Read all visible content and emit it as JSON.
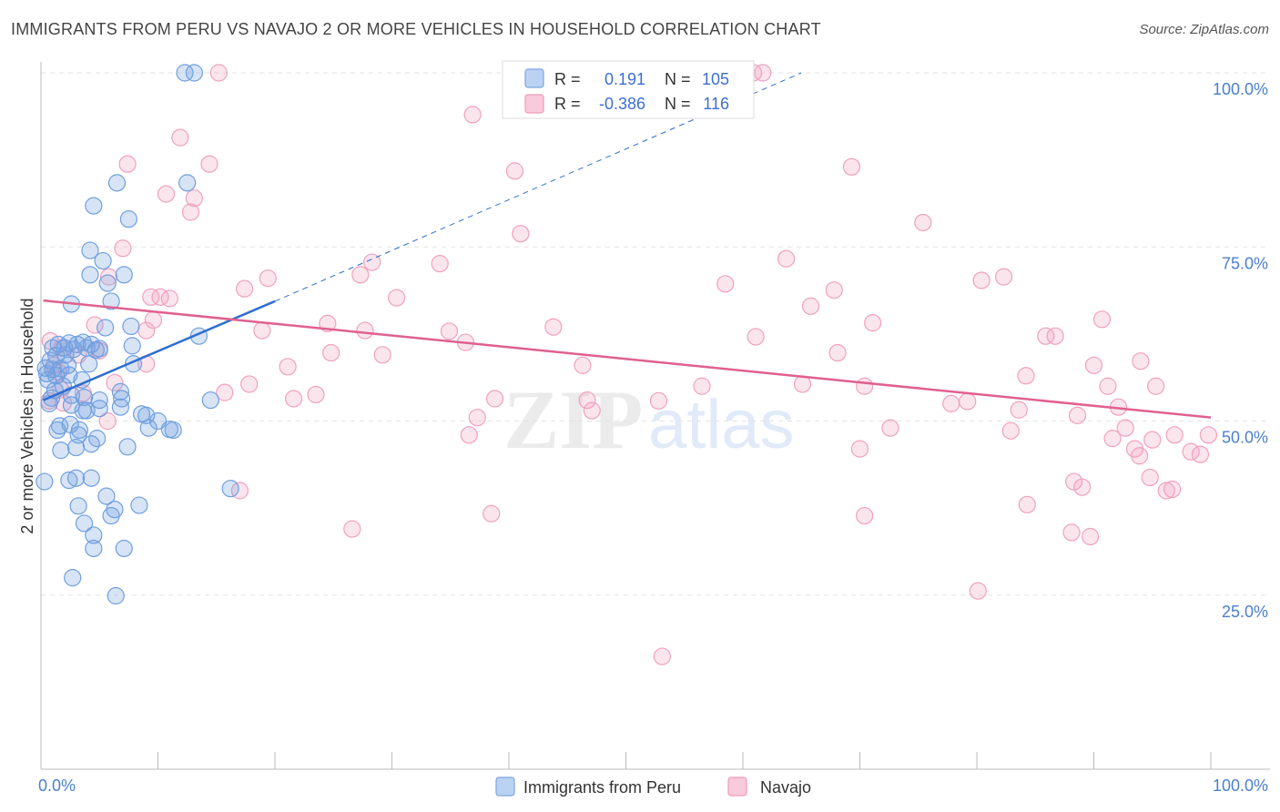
{
  "chart_title": "IMMIGRANTS FROM PERU VS NAVAJO 2 OR MORE VEHICLES IN HOUSEHOLD CORRELATION CHART",
  "source": "Source: ZipAtlas.com",
  "watermark": {
    "zip": "ZIP",
    "atlas": "atlas"
  },
  "colors": {
    "peru": "#6f9fe0",
    "peru_line": "#2f6fd0",
    "navajo": "#f0a0bf",
    "navajo_line": "#e0608f",
    "axis_label": "#4a7fd0"
  },
  "legend_top": {
    "rows": [
      {
        "r_label": "R =",
        "r_value": "0.191",
        "n_label": "N =",
        "n_value": "105"
      },
      {
        "r_label": "R =",
        "r_value": "-0.386",
        "n_label": "N =",
        "n_value": "116"
      }
    ]
  },
  "legend_bottom": {
    "peru": "Immigrants from Peru",
    "navajo": "Navajo"
  },
  "chart_data": {
    "type": "scatter",
    "title": "IMMIGRANTS FROM PERU VS NAVAJO 2 OR MORE VEHICLES IN HOUSEHOLD CORRELATION CHART",
    "xlabel": "",
    "ylabel": "2 or more Vehicles in Household",
    "xlim": [
      0,
      100
    ],
    "ylim": [
      0,
      100
    ],
    "x_tick_labels": {
      "left": "0.0%",
      "right": "100.0%"
    },
    "y_ticks": [
      {
        "value": 25,
        "label": "25.0%"
      },
      {
        "value": 50,
        "label": "50.0%"
      },
      {
        "value": 75,
        "label": "75.0%"
      },
      {
        "value": 100,
        "label": "100.0%"
      }
    ],
    "series": [
      {
        "name": "Immigrants from Peru",
        "r": 0.191,
        "n": 105,
        "trend": {
          "x0": 0.2,
          "y0": 53.0,
          "x1": 20.0,
          "y1": 67.2,
          "dash_to_x": 65.0,
          "dash_to_y": 100.0
        },
        "points": [
          [
            12.3,
            100
          ],
          [
            13.1,
            100
          ],
          [
            6.5,
            84.2
          ],
          [
            12.5,
            84.2
          ],
          [
            4.5,
            80.9
          ],
          [
            7.5,
            79.0
          ],
          [
            4.2,
            74.5
          ],
          [
            5.3,
            73.0
          ],
          [
            4.2,
            71.0
          ],
          [
            7.1,
            71.0
          ],
          [
            5.7,
            69.8
          ],
          [
            6.0,
            67.2
          ],
          [
            2.6,
            66.8
          ],
          [
            5.5,
            63.4
          ],
          [
            7.7,
            63.6
          ],
          [
            13.5,
            62.2
          ],
          [
            1.5,
            61.0
          ],
          [
            2.4,
            61.2
          ],
          [
            3.1,
            61.0
          ],
          [
            3.6,
            61.3
          ],
          [
            4.3,
            61.0
          ],
          [
            1.0,
            60.5
          ],
          [
            2.0,
            60.5
          ],
          [
            2.8,
            60.3
          ],
          [
            3.9,
            60.5
          ],
          [
            4.7,
            60.2
          ],
          [
            5.0,
            60.4
          ],
          [
            7.8,
            60.8
          ],
          [
            1.3,
            59.4
          ],
          [
            2.1,
            59.5
          ],
          [
            0.8,
            58.7
          ],
          [
            2.3,
            58.0
          ],
          [
            4.1,
            58.2
          ],
          [
            7.9,
            58.2
          ],
          [
            0.4,
            57.6
          ],
          [
            1.0,
            57.4
          ],
          [
            1.7,
            57.5
          ],
          [
            0.5,
            56.8
          ],
          [
            1.3,
            56.5
          ],
          [
            2.4,
            56.6
          ],
          [
            0.6,
            55.9
          ],
          [
            3.5,
            55.9
          ],
          [
            1.9,
            55.0
          ],
          [
            1.2,
            54.4
          ],
          [
            6.8,
            54.2
          ],
          [
            0.9,
            53.3
          ],
          [
            2.6,
            53.7
          ],
          [
            3.7,
            53.4
          ],
          [
            5.0,
            53.0
          ],
          [
            6.9,
            53.2
          ],
          [
            14.5,
            53.0
          ],
          [
            0.7,
            52.5
          ],
          [
            2.6,
            52.3
          ],
          [
            3.6,
            51.5
          ],
          [
            3.9,
            51.5
          ],
          [
            5.0,
            51.8
          ],
          [
            6.8,
            52.0
          ],
          [
            8.6,
            51.0
          ],
          [
            9.0,
            50.8
          ],
          [
            1.6,
            49.3
          ],
          [
            2.5,
            49.5
          ],
          [
            9.2,
            49.0
          ],
          [
            10.0,
            50.0
          ],
          [
            11.0,
            48.8
          ],
          [
            1.4,
            48.7
          ],
          [
            3.2,
            48.0
          ],
          [
            3.3,
            48.7
          ],
          [
            4.8,
            47.5
          ],
          [
            4.3,
            46.7
          ],
          [
            3.0,
            46.2
          ],
          [
            1.7,
            45.8
          ],
          [
            7.4,
            46.3
          ],
          [
            0.3,
            41.3
          ],
          [
            2.4,
            41.5
          ],
          [
            3.0,
            41.8
          ],
          [
            4.3,
            41.8
          ],
          [
            5.6,
            39.2
          ],
          [
            8.4,
            37.9
          ],
          [
            3.2,
            37.8
          ],
          [
            6.3,
            37.3
          ],
          [
            6.0,
            36.4
          ],
          [
            3.7,
            35.3
          ],
          [
            4.5,
            33.6
          ],
          [
            4.5,
            31.7
          ],
          [
            7.1,
            31.7
          ],
          [
            2.7,
            27.5
          ],
          [
            6.4,
            24.9
          ],
          [
            16.2,
            40.3
          ],
          [
            11.3,
            48.7
          ]
        ]
      },
      {
        "name": "Navajo",
        "r": -0.386,
        "n": 116,
        "trend": {
          "x0": 0.2,
          "y0": 67.3,
          "x1": 100.0,
          "y1": 50.5
        },
        "points": [
          [
            15.2,
            100
          ],
          [
            60.9,
            100
          ],
          [
            61.7,
            100
          ],
          [
            11.9,
            90.7
          ],
          [
            36.9,
            94.0
          ],
          [
            7.4,
            86.9
          ],
          [
            14.4,
            86.9
          ],
          [
            40.5,
            85.9
          ],
          [
            69.3,
            86.5
          ],
          [
            10.7,
            82.6
          ],
          [
            13.1,
            82.0
          ],
          [
            12.8,
            80.0
          ],
          [
            41.0,
            76.9
          ],
          [
            75.4,
            78.5
          ],
          [
            7.0,
            74.8
          ],
          [
            28.3,
            72.8
          ],
          [
            34.1,
            72.6
          ],
          [
            63.7,
            73.3
          ],
          [
            5.8,
            70.7
          ],
          [
            19.4,
            70.5
          ],
          [
            27.3,
            71.0
          ],
          [
            58.5,
            69.7
          ],
          [
            80.4,
            70.2
          ],
          [
            82.3,
            70.7
          ],
          [
            17.4,
            69.0
          ],
          [
            67.8,
            68.8
          ],
          [
            9.4,
            67.8
          ],
          [
            10.2,
            67.8
          ],
          [
            30.4,
            67.7
          ],
          [
            11.0,
            67.6
          ],
          [
            65.8,
            66.5
          ],
          [
            9.6,
            64.5
          ],
          [
            24.5,
            64.0
          ],
          [
            71.1,
            64.1
          ],
          [
            90.7,
            64.6
          ],
          [
            4.6,
            63.8
          ],
          [
            9.0,
            63.0
          ],
          [
            18.9,
            63.0
          ],
          [
            43.8,
            63.5
          ],
          [
            27.7,
            63.0
          ],
          [
            34.9,
            62.9
          ],
          [
            36.3,
            61.3
          ],
          [
            61.1,
            62.1
          ],
          [
            85.9,
            62.2
          ],
          [
            86.7,
            62.2
          ],
          [
            0.8,
            61.5
          ],
          [
            1.8,
            60.5
          ],
          [
            3.2,
            59.5
          ],
          [
            5.0,
            60.1
          ],
          [
            24.8,
            59.8
          ],
          [
            29.2,
            59.5
          ],
          [
            68.1,
            59.8
          ],
          [
            1.1,
            58.0
          ],
          [
            9.0,
            58.2
          ],
          [
            21.1,
            57.8
          ],
          [
            46.3,
            58.0
          ],
          [
            90.0,
            58.0
          ],
          [
            94.0,
            58.6
          ],
          [
            1.5,
            57.0
          ],
          [
            84.2,
            56.5
          ],
          [
            6.3,
            55.5
          ],
          [
            17.8,
            55.3
          ],
          [
            70.4,
            55.0
          ],
          [
            1.7,
            54.5
          ],
          [
            3.6,
            54.0
          ],
          [
            15.7,
            54.1
          ],
          [
            23.5,
            53.8
          ],
          [
            56.5,
            55.0
          ],
          [
            65.1,
            55.3
          ],
          [
            91.2,
            55.0
          ],
          [
            95.3,
            55.0
          ],
          [
            0.7,
            52.9
          ],
          [
            1.9,
            52.6
          ],
          [
            21.6,
            53.2
          ],
          [
            38.8,
            53.2
          ],
          [
            46.7,
            53.0
          ],
          [
            52.8,
            52.9
          ],
          [
            77.8,
            52.5
          ],
          [
            79.2,
            52.8
          ],
          [
            92.1,
            52.0
          ],
          [
            47.1,
            51.5
          ],
          [
            83.6,
            51.6
          ],
          [
            88.6,
            50.8
          ],
          [
            37.3,
            50.5
          ],
          [
            5.7,
            50.0
          ],
          [
            72.6,
            49.0
          ],
          [
            36.6,
            48.0
          ],
          [
            82.9,
            48.6
          ],
          [
            92.7,
            49.0
          ],
          [
            96.9,
            48.0
          ],
          [
            91.6,
            47.5
          ],
          [
            95.0,
            47.3
          ],
          [
            99.8,
            48.0
          ],
          [
            70.0,
            46.0
          ],
          [
            93.5,
            46.0
          ],
          [
            98.3,
            45.6
          ],
          [
            99.1,
            45.2
          ],
          [
            93.9,
            45.0
          ],
          [
            94.8,
            41.9
          ],
          [
            88.3,
            41.3
          ],
          [
            89.0,
            40.5
          ],
          [
            96.7,
            40.2
          ],
          [
            96.2,
            40.0
          ],
          [
            17.0,
            40.0
          ],
          [
            84.3,
            38.0
          ],
          [
            38.5,
            36.7
          ],
          [
            70.4,
            36.4
          ],
          [
            26.6,
            34.5
          ],
          [
            88.1,
            34.0
          ],
          [
            89.7,
            33.4
          ],
          [
            80.1,
            25.6
          ],
          [
            53.1,
            16.2
          ]
        ]
      }
    ]
  }
}
